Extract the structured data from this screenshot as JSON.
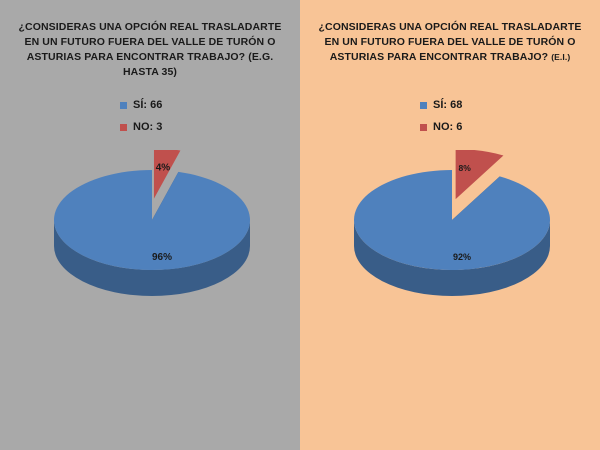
{
  "chart_data": [
    {
      "type": "pie",
      "title": "¿CONSIDERAS UNA OPCIÓN REAL TRASLADARTE EN UN FUTURO FUERA DEL VALLE DE TURÓN O ASTURIAS PARA ENCONTRAR TRABAJO? (E.G. HASTA 35)",
      "title_main": "¿CONSIDERAS UNA OPCIÓN REAL TRASLADARTE EN UN FUTURO FUERA DEL VALLE DE TURÓN O ASTURIAS PARA ENCONTRAR TRABAJO?",
      "title_suffix": "(E.G. HASTA 35)",
      "background": "#a9a9a9",
      "legend": [
        "SÍ: 66",
        "NO: 3"
      ],
      "slices": [
        {
          "label": "SÍ",
          "value": 66,
          "percent_label": "96%",
          "color": "#4f81bd"
        },
        {
          "label": "NO",
          "value": 3,
          "percent_label": "4%",
          "color": "#c0504d"
        }
      ]
    },
    {
      "type": "pie",
      "title": "¿CONSIDERAS UNA OPCIÓN REAL TRASLADARTE EN UN FUTURO FUERA DEL VALLE DE TURÓN O ASTURIAS PARA ENCONTRAR TRABAJO? (E.I.)",
      "title_main": "¿CONSIDERAS UNA OPCIÓN REAL TRASLADARTE EN UN FUTURO FUERA DEL VALLE DE TURÓN O ASTURIAS PARA ENCONTRAR TRABAJO?",
      "title_suffix": "(E.I.)",
      "background": "#f8c496",
      "legend": [
        "SÍ: 68",
        "NO: 6"
      ],
      "slices": [
        {
          "label": "SÍ",
          "value": 68,
          "percent_label": "92%",
          "color": "#4f81bd"
        },
        {
          "label": "NO",
          "value": 6,
          "percent_label": "8%",
          "color": "#c0504d"
        }
      ]
    }
  ]
}
